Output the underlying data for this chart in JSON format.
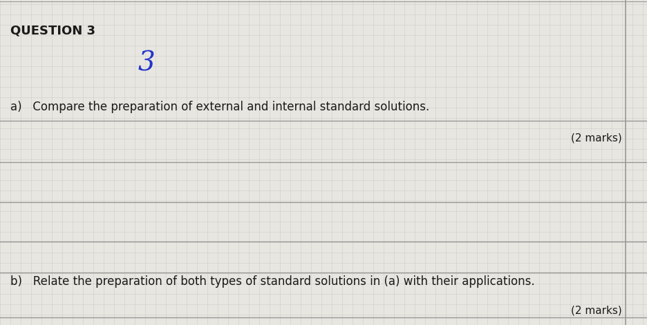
{
  "background_color": "#e8e6e0",
  "grid_minor_color": "#d0cdc8",
  "grid_major_color": "#bcb9b4",
  "ruled_line_color": "#9a9896",
  "margin_line_color": "#9a9896",
  "header_text": "QUESTION 3",
  "header_fontsize": 13,
  "number_text": "3",
  "number_color": "#2233cc",
  "number_fontsize": 28,
  "qa_text": "a)   Compare the preparation of external and internal standard solutions.",
  "qa_fontsize": 12,
  "marks_a_text": "(2 marks)",
  "marks_fontsize": 11,
  "qb_text": "b)   Relate the preparation of both types of standard solutions in (a) with their applications.",
  "qb_fontsize": 12,
  "marks_b_text": "(2 marks)",
  "text_color": "#1a1a1a",
  "fig_width": 9.37,
  "fig_height": 4.71,
  "dpi": 100
}
